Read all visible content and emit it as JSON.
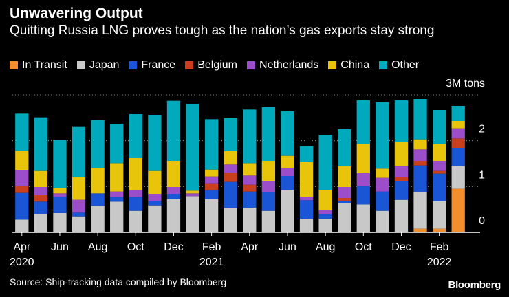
{
  "header": {
    "title": "Unwavering Output",
    "subtitle": "Quitting Russia LNG proves tough as the nation’s gas exports stay strong"
  },
  "footer": {
    "source": "Source: Ship-tracking data compiled by Bloomberg",
    "brand": "Bloomberg"
  },
  "chart_data": {
    "type": "bar",
    "stacked": true,
    "title": "Unwavering Output",
    "subtitle": "Quitting Russia LNG proves tough as the nation’s gas exports stay strong",
    "unit_label": "3M tons",
    "ylim": [
      0,
      3
    ],
    "y_ticks": [
      0,
      1,
      2
    ],
    "grid": true,
    "legend_position": "top",
    "categories": [
      "Apr 2020",
      "May 2020",
      "Jun 2020",
      "Jul 2020",
      "Aug 2020",
      "Sep 2020",
      "Oct 2020",
      "Nov 2020",
      "Dec 2020",
      "Jan 2021",
      "Feb 2021",
      "Mar 2021",
      "Apr 2021",
      "May 2021",
      "Jun 2021",
      "Jul 2021",
      "Aug 2021",
      "Sep 2021",
      "Oct 2021",
      "Nov 2021",
      "Dec 2021",
      "Jan 2022",
      "Feb 2022",
      "Mar 2022"
    ],
    "x_tick_labels": [
      {
        "index": 0,
        "month": "Apr",
        "year": "2020"
      },
      {
        "index": 2,
        "month": "Jun",
        "year": ""
      },
      {
        "index": 4,
        "month": "Aug",
        "year": ""
      },
      {
        "index": 6,
        "month": "Oct",
        "year": ""
      },
      {
        "index": 8,
        "month": "Dec",
        "year": ""
      },
      {
        "index": 10,
        "month": "Feb",
        "year": "2021"
      },
      {
        "index": 12,
        "month": "Apr",
        "year": ""
      },
      {
        "index": 14,
        "month": "Jun",
        "year": ""
      },
      {
        "index": 16,
        "month": "Aug",
        "year": ""
      },
      {
        "index": 18,
        "month": "Oct",
        "year": ""
      },
      {
        "index": 20,
        "month": "Dec",
        "year": ""
      },
      {
        "index": 22,
        "month": "Feb",
        "year": "2022"
      }
    ],
    "series": [
      {
        "name": "In Transit",
        "color": "#f28e2b",
        "values": [
          0,
          0,
          0,
          0,
          0,
          0,
          0,
          0,
          0,
          0,
          0,
          0,
          0,
          0,
          0,
          0,
          0,
          0,
          0,
          0,
          0,
          0.08,
          0.08,
          0.95
        ]
      },
      {
        "name": "Japan",
        "color": "#c8c8c8",
        "values": [
          0.28,
          0.4,
          0.42,
          0.35,
          0.58,
          0.67,
          0.47,
          0.59,
          0.72,
          0.79,
          0.72,
          0.54,
          0.54,
          0.47,
          0.93,
          0.3,
          0.3,
          0.63,
          0.61,
          0.47,
          0.71,
          0.8,
          0.6,
          0.5
        ]
      },
      {
        "name": "France",
        "color": "#1a55d6",
        "values": [
          0.58,
          0.27,
          0.36,
          0.08,
          0.27,
          0.1,
          0.3,
          0.1,
          0.12,
          0,
          0.2,
          0.56,
          0.35,
          0.4,
          0.3,
          0.4,
          0.1,
          0.06,
          0.4,
          0.42,
          0.4,
          0.58,
          0.6,
          0.38
        ]
      },
      {
        "name": "Belgium",
        "color": "#c9401e",
        "values": [
          0.15,
          0.14,
          0,
          0,
          0,
          0,
          0,
          0,
          0,
          0,
          0.15,
          0.2,
          0.15,
          0,
          0,
          0,
          0,
          0.06,
          0,
          0,
          0.09,
          0.1,
          0.06,
          0.22
        ]
      },
      {
        "name": "Netherlands",
        "color": "#9b4dca",
        "values": [
          0.35,
          0.18,
          0.07,
          0.28,
          0,
          0.12,
          0.15,
          0.15,
          0.15,
          0.06,
          0.15,
          0.18,
          0.2,
          0.25,
          0.17,
          0.08,
          0.08,
          0.24,
          0.28,
          0.3,
          0.25,
          0.25,
          0.22,
          0.22
        ]
      },
      {
        "name": "China",
        "color": "#e8c40b",
        "values": [
          0.42,
          0.35,
          0.12,
          0.49,
          0.56,
          0.62,
          0.7,
          0.5,
          0.57,
          0.06,
          0.15,
          0.29,
          0.27,
          0.44,
          0.27,
          0.75,
          0.45,
          0.45,
          0.64,
          0.2,
          0.52,
          0.22,
          0.37,
          0.16
        ]
      },
      {
        "name": "Other",
        "color": "#00a9bc",
        "values": [
          0.81,
          1.17,
          1.04,
          1.1,
          1.04,
          0.86,
          0.96,
          1.22,
          1.31,
          1.89,
          1.1,
          0.72,
          1.17,
          1.17,
          0.97,
          0.35,
          1.2,
          0.81,
          0.95,
          1.45,
          0.91,
          0.88,
          0.74,
          0.33
        ]
      }
    ]
  }
}
